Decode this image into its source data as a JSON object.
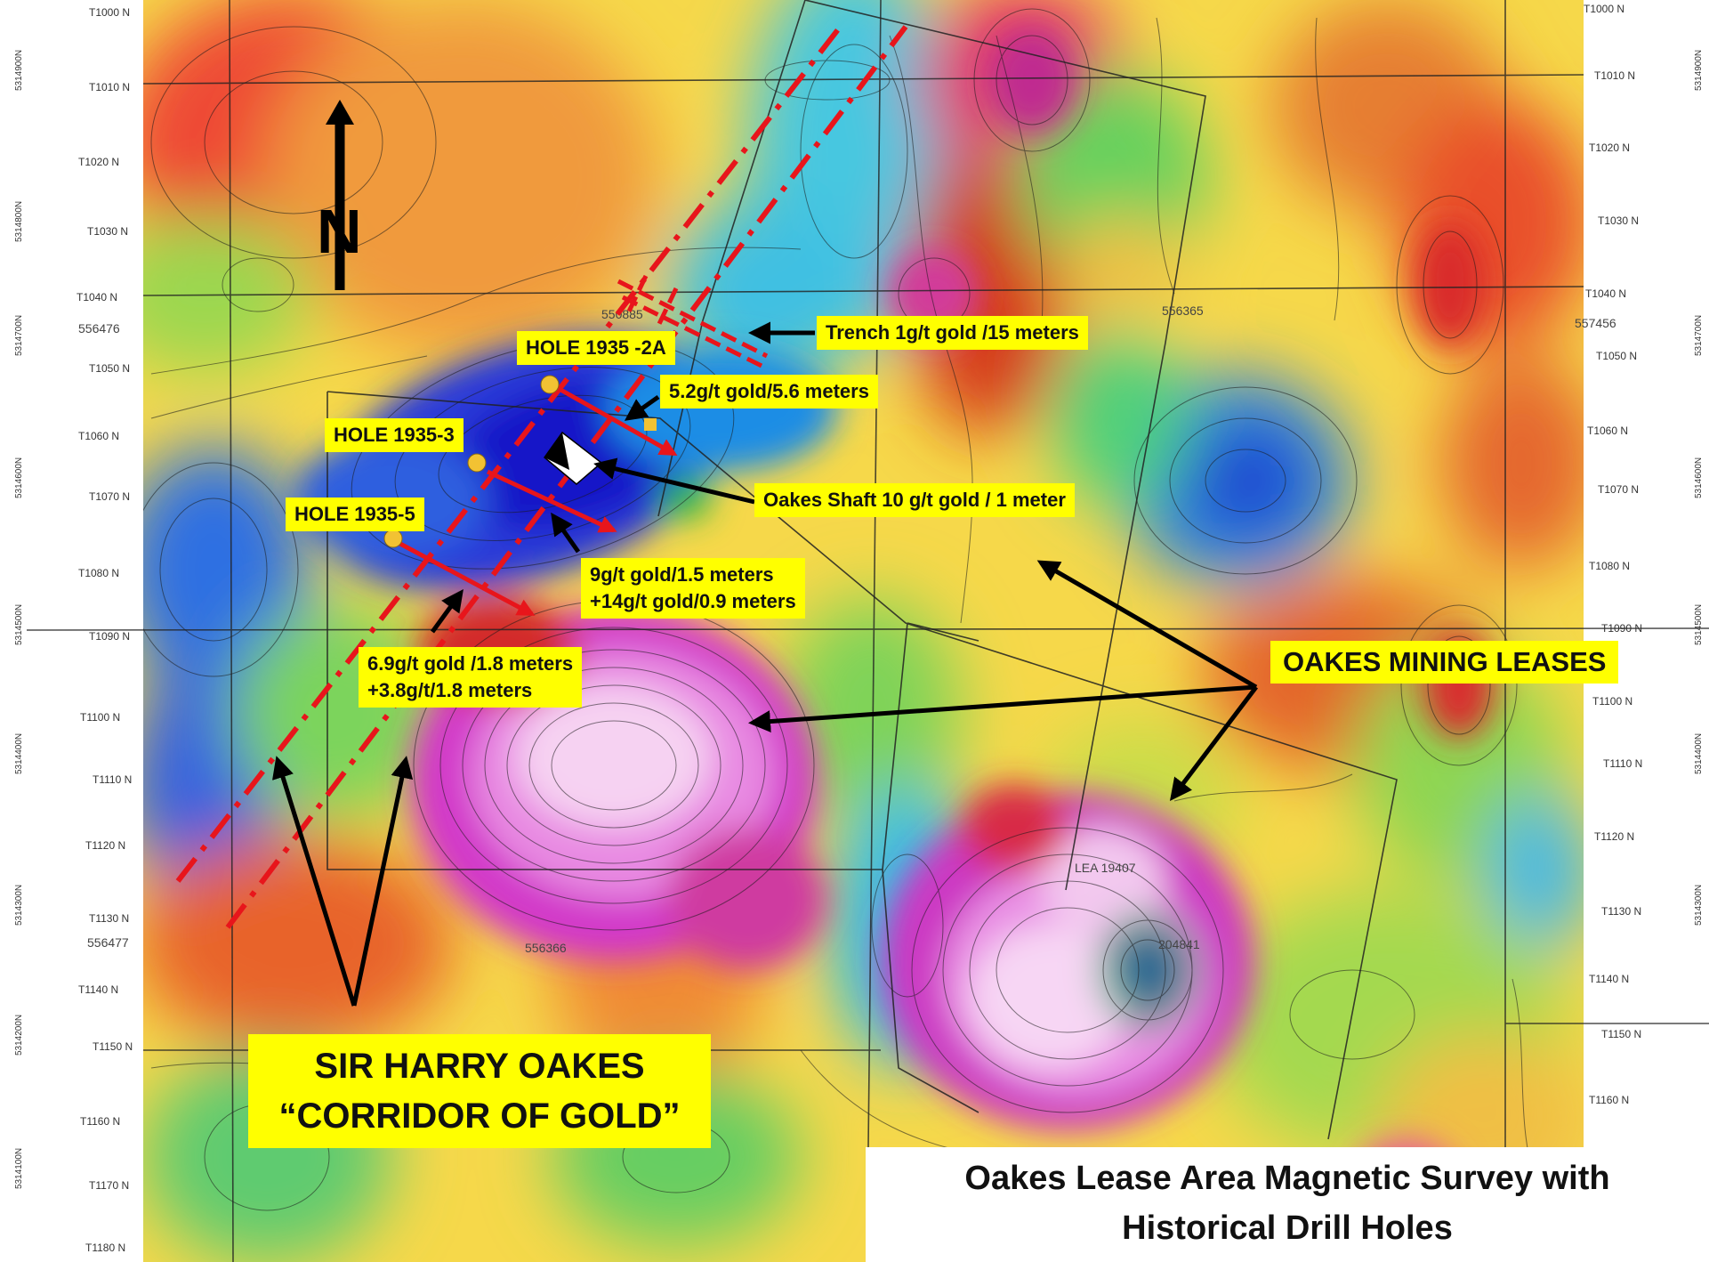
{
  "title": {
    "line1": "Oakes Lease Area Magnetic Survey with",
    "line2": "Historical Drill Holes"
  },
  "north_arrow": {
    "label": "N"
  },
  "grid": {
    "left_labels": [
      "T1000 N",
      "T1010 N",
      "T1020 N",
      "T1030 N",
      "T1040 N",
      "T1050 N",
      "T1060 N",
      "T1070 N",
      "T1080 N",
      "T1090 N",
      "T1100 N",
      "T1110 N",
      "T1120 N",
      "T1130 N",
      "T1140 N",
      "T1150 N",
      "T1160 N",
      "T1170 N",
      "T1180 N"
    ],
    "right_labels": [
      "T1000 N",
      "T1010 N",
      "T1020 N",
      "T1030 N",
      "T1040 N",
      "T1050 N",
      "T1060 N",
      "T1070 N",
      "T1080 N",
      "T1090 N",
      "T1100 N",
      "T1110 N",
      "T1120 N",
      "T1130 N",
      "T1140 N",
      "T1150 N",
      "T1160 N"
    ],
    "northings": [
      "5314900N",
      "5314800N",
      "5314700N",
      "5314600N",
      "5314500N",
      "5314400N",
      "5314300N",
      "5314200N",
      "5314100N"
    ]
  },
  "claim_numbers": [
    "556476",
    "556477",
    "557456",
    "550885",
    "556365",
    "556366",
    "LEA 19407",
    "204841"
  ],
  "callouts": {
    "hole_2a": "HOLE 1935 -2A",
    "hole_3": "HOLE 1935-3",
    "hole_5": "HOLE 1935-5",
    "trench": "Trench 1g/t gold /15 meters",
    "result_2a": "5.2g/t gold/5.6 meters",
    "shaft": "Oakes Shaft 10 g/t gold / 1 meter",
    "result_3_line1": "9g/t gold/1.5 meters",
    "result_3_line2": "+14g/t gold/0.9 meters",
    "result_5_line1": "6.9g/t gold /1.8 meters",
    "result_5_line2": "+3.8g/t/1.8 meters",
    "leases": "OAKES MINING LEASES",
    "corridor_line1": "SIR HARRY OAKES",
    "corridor_line2": "“CORRIDOR OF GOLD”"
  },
  "colors": {
    "highlight": "#ffff00",
    "drill_trace": "#e8151b",
    "magnetic_low": "#1a1ad8",
    "magnetic_high": "#f4c0f0"
  }
}
